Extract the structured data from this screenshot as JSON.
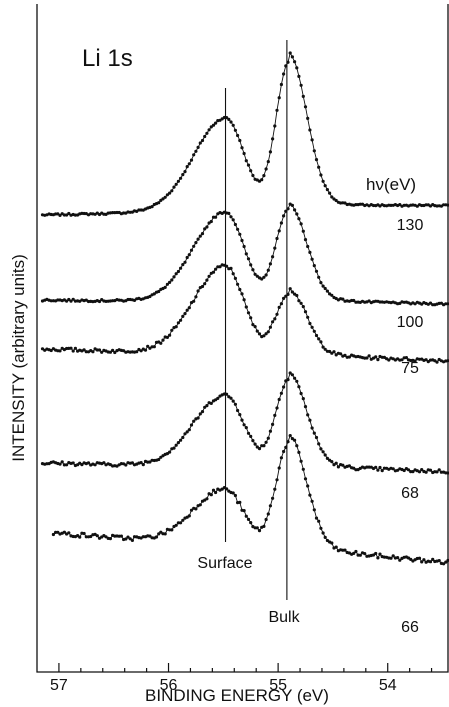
{
  "chart_data": {
    "type": "line",
    "title": "Li 1s",
    "xlabel": "BINDING ENERGY (eV)",
    "ylabel": "INTENSITY (arbitrary units)",
    "x_reversed": true,
    "xlim": [
      57.2,
      53.45
    ],
    "x_ticks": [
      {
        "value": 57,
        "label": "57"
      },
      {
        "value": 56,
        "label": "56"
      },
      {
        "value": 55,
        "label": "55"
      },
      {
        "value": 54,
        "label": "54"
      }
    ],
    "legend_title": "hν(eV)",
    "reference_lines": [
      {
        "x": 55.48,
        "label": "Surface"
      },
      {
        "x": 54.92,
        "label": "Bulk"
      }
    ],
    "series": [
      {
        "name": "130",
        "start_x": 57.15,
        "end_x": 53.45,
        "base_start": 0.0,
        "base_end": 0.06,
        "surface_height": 0.62,
        "bulk_height": 0.98,
        "noise": 0.006
      },
      {
        "name": "100",
        "start_x": 57.15,
        "end_x": 53.45,
        "base_start": 0.0,
        "base_end": -0.03,
        "surface_height": 0.6,
        "bulk_height": 0.62,
        "noise": 0.007
      },
      {
        "name": "75",
        "start_x": 57.15,
        "end_x": 53.45,
        "base_start": 0.02,
        "base_end": -0.06,
        "surface_height": 0.59,
        "bulk_height": 0.42,
        "noise": 0.012
      },
      {
        "name": "68",
        "start_x": 57.15,
        "end_x": 53.45,
        "base_start": 0.0,
        "base_end": -0.06,
        "surface_height": 0.48,
        "bulk_height": 0.6,
        "noise": 0.012
      },
      {
        "name": "66",
        "start_x": 57.05,
        "end_x": 53.45,
        "base_start": 0.1,
        "base_end": -0.1,
        "surface_height": 0.38,
        "bulk_height": 0.72,
        "noise": 0.015
      }
    ]
  }
}
